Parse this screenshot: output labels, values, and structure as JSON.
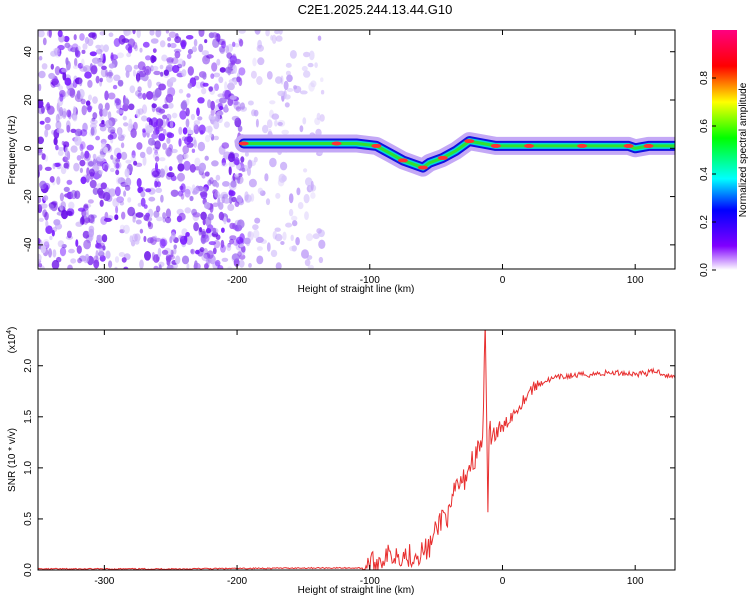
{
  "title": "C2E1.2025.244.13.44.G10",
  "chart_data": [
    {
      "type": "heatmap",
      "xlabel": "Height of straight line (km)",
      "ylabel": "Frequency (Hz)",
      "xlim": [
        -350,
        130
      ],
      "ylim": [
        -50,
        49
      ],
      "xticks": [
        -300,
        -200,
        -100,
        0,
        100
      ],
      "yticks": [
        -40,
        -20,
        0,
        20,
        40
      ],
      "colorbar": {
        "label": "Normalized spectral amplitude",
        "range": [
          0,
          1
        ],
        "ticks": [
          "0.0",
          "0.2",
          "0.4",
          "0.6",
          "0.8"
        ],
        "colors": [
          "#ffffff",
          "#8000ff",
          "#0000ff",
          "#00ffff",
          "#00ff00",
          "#ffff00",
          "#ff0000",
          "#ff0080"
        ]
      },
      "ridge": {
        "x": [
          -195,
          -150,
          -125,
          -110,
          -95,
          -85,
          -75,
          -65,
          -60,
          -55,
          -45,
          -35,
          -25,
          -15,
          -5,
          5,
          20,
          40,
          60,
          80,
          95,
          100,
          110,
          130
        ],
        "y": [
          2,
          2,
          2,
          2,
          1,
          -2,
          -5,
          -7,
          -8,
          -6,
          -4,
          -1,
          3,
          2,
          1,
          1,
          1,
          1,
          1,
          1,
          1,
          0,
          1,
          1
        ]
      }
    },
    {
      "type": "line",
      "xlabel": "Height of straight line (km)",
      "ylabel": "SNR (10 * v/v)",
      "yscale_label": "(x10",
      "yscale_exp": "4",
      "xlim": [
        -350,
        130
      ],
      "ylim": [
        0,
        2.35
      ],
      "xticks": [
        -300,
        -200,
        -100,
        0,
        100
      ],
      "yticks": [
        "0.0",
        "0.5",
        "1.0",
        "1.5",
        "2.0"
      ],
      "color": "#e83030",
      "series": [
        {
          "x": [
            -350,
            -250,
            -150,
            -105,
            -100,
            -90,
            -80,
            -70,
            -60,
            -55,
            -50,
            -45,
            -40,
            -35,
            -30,
            -25,
            -20,
            -15,
            -13,
            -12,
            -11,
            -10,
            -5,
            0,
            5,
            10,
            15,
            20,
            25,
            30,
            40,
            50,
            60,
            70,
            80,
            90,
            100,
            110,
            115,
            120,
            125,
            130
          ],
          "y": [
            0.01,
            0.01,
            0.02,
            0.02,
            0.04,
            0.12,
            0.16,
            0.14,
            0.18,
            0.22,
            0.38,
            0.55,
            0.52,
            0.82,
            0.85,
            1.02,
            1.12,
            1.28,
            2.32,
            1.5,
            0.45,
            1.35,
            1.33,
            1.38,
            1.48,
            1.56,
            1.65,
            1.75,
            1.8,
            1.84,
            1.88,
            1.9,
            1.91,
            1.92,
            1.93,
            1.93,
            1.92,
            1.93,
            1.95,
            1.93,
            1.9,
            1.88
          ]
        }
      ]
    }
  ]
}
